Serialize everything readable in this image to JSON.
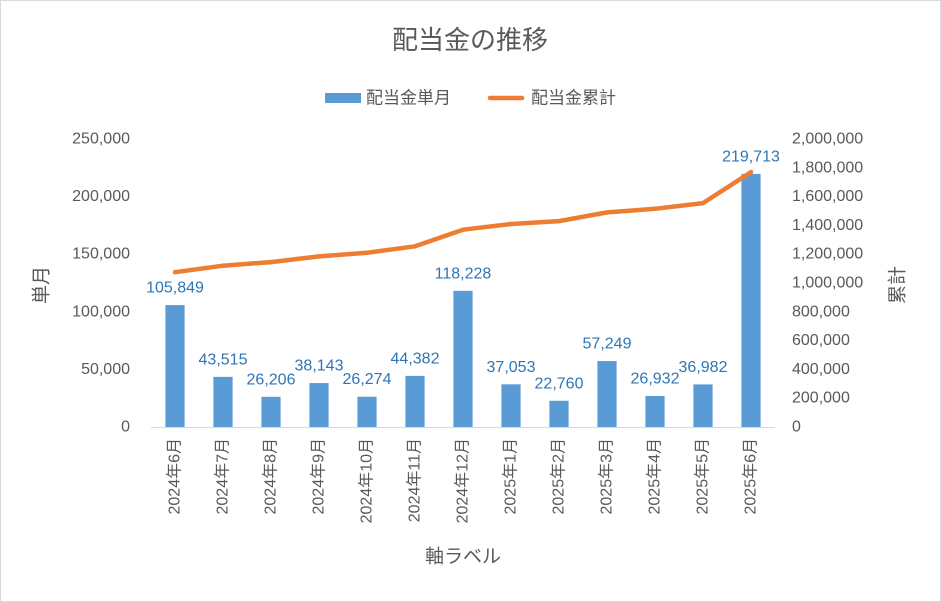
{
  "chart_data": {
    "type": "bar",
    "title": "配当金の推移",
    "xlabel": "軸ラベル",
    "ylabel": "単月",
    "y2label": "累計",
    "categories": [
      "2024年6月",
      "2024年7月",
      "2024年8月",
      "2024年9月",
      "2024年10月",
      "2024年11月",
      "2024年12月",
      "2025年1月",
      "2025年2月",
      "2025年3月",
      "2025年4月",
      "2025年5月",
      "2025年6月"
    ],
    "ylim": [
      0,
      250000
    ],
    "yticks": [
      0,
      50000,
      100000,
      150000,
      200000,
      250000
    ],
    "ytick_labels": [
      "0",
      "50,000",
      "100,000",
      "150,000",
      "200,000",
      "250,000"
    ],
    "y2lim": [
      0,
      2000000
    ],
    "y2ticks": [
      0,
      200000,
      400000,
      600000,
      800000,
      1000000,
      1200000,
      1400000,
      1600000,
      1800000,
      2000000
    ],
    "y2tick_labels": [
      "0",
      "200,000",
      "400,000",
      "600,000",
      "800,000",
      "1,000,000",
      "1,200,000",
      "1,400,000",
      "1,600,000",
      "1,800,000",
      "2,000,000"
    ],
    "grid": false,
    "legend_position": "top",
    "series": [
      {
        "name": "配当金単月",
        "type": "bar",
        "axis": "left",
        "color": "#5B9BD5",
        "values": [
          105849,
          43515,
          26206,
          38143,
          26274,
          44382,
          118228,
          37053,
          22760,
          57249,
          26932,
          36982,
          219713
        ],
        "data_labels": [
          "105,849",
          "43,515",
          "26,206",
          "38,143",
          "26,274",
          "44,382",
          "118,228",
          "37,053",
          "22,760",
          "57,249",
          "26,932",
          "36,982",
          "219,713"
        ],
        "data_label_color": "#2E75B6"
      },
      {
        "name": "配当金累計",
        "type": "line",
        "axis": "right",
        "color": "#ED7D31",
        "values": [
          1075000,
          1120000,
          1145000,
          1185000,
          1210000,
          1255000,
          1370000,
          1410000,
          1430000,
          1490000,
          1515000,
          1555000,
          1770000
        ]
      }
    ]
  }
}
